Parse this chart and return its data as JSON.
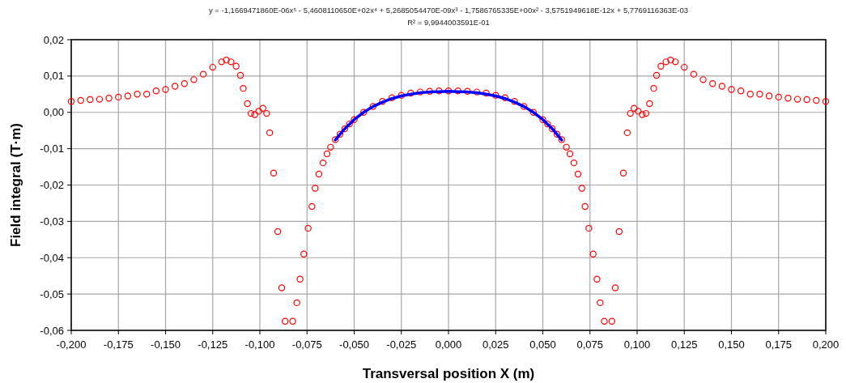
{
  "chart_data": {
    "type": "scatter",
    "title": "y = -1,1669471860E-06x⁵ - 5,4608110650E+02x⁴ + 5,2685054470E-09x³ - 1,7586765335E+00x² - 3,5751949618E-12x + 5,7769116363E-03",
    "subtitle": "R² = 9,9944003591E-01",
    "xlabel": "Transversal position X (m)",
    "ylabel": "Field integral (T·m)",
    "xlim": [
      -0.2,
      0.2
    ],
    "ylim": [
      -0.06,
      0.02
    ],
    "xticks": [
      {
        "value": -0.2,
        "label": "-0,200"
      },
      {
        "value": -0.175,
        "label": "-0,175"
      },
      {
        "value": -0.15,
        "label": "-0,150"
      },
      {
        "value": -0.125,
        "label": "-0,125"
      },
      {
        "value": -0.1,
        "label": "-0,100"
      },
      {
        "value": -0.075,
        "label": "-0,075"
      },
      {
        "value": -0.05,
        "label": "-0,050"
      },
      {
        "value": -0.025,
        "label": "-0,025"
      },
      {
        "value": 0,
        "label": "0,000"
      },
      {
        "value": 0.025,
        "label": "0,025"
      },
      {
        "value": 0.05,
        "label": "0,050"
      },
      {
        "value": 0.075,
        "label": "0,075"
      },
      {
        "value": 0.1,
        "label": "0,100"
      },
      {
        "value": 0.125,
        "label": "0,125"
      },
      {
        "value": 0.15,
        "label": "0,150"
      },
      {
        "value": 0.175,
        "label": "0,175"
      },
      {
        "value": 0.2,
        "label": "0,200"
      }
    ],
    "yticks": [
      {
        "value": -0.06,
        "label": "-0,06"
      },
      {
        "value": -0.05,
        "label": "-0,05"
      },
      {
        "value": -0.04,
        "label": "-0,04"
      },
      {
        "value": -0.03,
        "label": "-0,03"
      },
      {
        "value": -0.02,
        "label": "-0,02"
      },
      {
        "value": -0.01,
        "label": "-0,01"
      },
      {
        "value": 0,
        "label": "0,00"
      },
      {
        "value": 0.01,
        "label": "0,01"
      },
      {
        "value": 0.02,
        "label": "0,02"
      }
    ],
    "grid": true,
    "series": [
      {
        "color": "#ff0000",
        "marker": "circle",
        "x": [
          -0.2,
          -0.195,
          -0.19,
          -0.185,
          -0.18,
          -0.175,
          -0.17,
          -0.165,
          -0.16,
          -0.155,
          -0.15,
          -0.145,
          -0.14,
          -0.135,
          -0.13,
          -0.125,
          -0.1203,
          -0.1178,
          -0.1153,
          -0.1126,
          -0.1103,
          -0.1088,
          -0.1066,
          -0.1047,
          -0.1027,
          -0.1006,
          -0.0984,
          -0.0964,
          -0.0948,
          -0.0927,
          -0.0905,
          -0.0884,
          -0.0866,
          -0.0826,
          -0.0804,
          -0.0787,
          -0.0767,
          -0.0744,
          -0.0724,
          -0.0707,
          -0.0687,
          -0.0665,
          -0.0644,
          -0.0625,
          -0.06,
          -0.0575,
          -0.055,
          -0.0525,
          -0.05,
          -0.045,
          -0.04,
          -0.035,
          -0.03,
          -0.025,
          -0.02,
          -0.015,
          -0.01,
          -0.005,
          0,
          0.005,
          0.01,
          0.015,
          0.02,
          0.025,
          0.03,
          0.035,
          0.04,
          0.045,
          0.05,
          0.0525,
          0.055,
          0.0575,
          0.06,
          0.0625,
          0.0644,
          0.0665,
          0.0687,
          0.0707,
          0.0724,
          0.0744,
          0.0767,
          0.0787,
          0.0804,
          0.0826,
          0.0866,
          0.0884,
          0.0905,
          0.0927,
          0.0948,
          0.0964,
          0.0984,
          0.1006,
          0.1027,
          0.1047,
          0.1066,
          0.1088,
          0.1103,
          0.1126,
          0.1153,
          0.1178,
          0.1203,
          0.125,
          0.13,
          0.135,
          0.14,
          0.145,
          0.15,
          0.155,
          0.16,
          0.165,
          0.17,
          0.175,
          0.18,
          0.185,
          0.19,
          0.195,
          0.2
        ],
        "values": [
          0.003,
          0.0033,
          0.0035,
          0.0036,
          0.0039,
          0.0042,
          0.0045,
          0.005,
          0.005,
          0.0059,
          0.0063,
          0.0072,
          0.0079,
          0.009,
          0.0105,
          0.0124,
          0.0139,
          0.0144,
          0.0139,
          0.0127,
          0.0102,
          0.0066,
          0.0024,
          -0.0003,
          -0.0006,
          0.0003,
          0.0011,
          -0.0003,
          -0.0056,
          -0.0167,
          -0.0328,
          -0.0483,
          -0.0575,
          -0.0575,
          -0.0524,
          -0.0459,
          -0.039,
          -0.0319,
          -0.0259,
          -0.0209,
          -0.017,
          -0.0139,
          -0.0114,
          -0.0096,
          -0.0075,
          -0.006,
          -0.0045,
          -0.0032,
          -0.002,
          0.0,
          0.0016,
          0.003,
          0.004,
          0.0047,
          0.0053,
          0.0056,
          0.0058,
          0.0059,
          0.0059,
          0.0059,
          0.0058,
          0.0056,
          0.0053,
          0.0047,
          0.004,
          0.003,
          0.0016,
          0.0,
          -0.002,
          -0.0032,
          -0.0045,
          -0.006,
          -0.0075,
          -0.0096,
          -0.0114,
          -0.0139,
          -0.017,
          -0.0209,
          -0.0259,
          -0.0319,
          -0.039,
          -0.0459,
          -0.0524,
          -0.0575,
          -0.0575,
          -0.0483,
          -0.0328,
          -0.0167,
          -0.0056,
          -0.0003,
          0.0011,
          0.0003,
          -0.0006,
          -0.0003,
          0.0024,
          0.0066,
          0.0102,
          0.0127,
          0.0139,
          0.0144,
          0.0139,
          0.0124,
          0.0105,
          0.009,
          0.0079,
          0.0072,
          0.0063,
          0.0059,
          0.005,
          0.005,
          0.0045,
          0.0042,
          0.0039,
          0.0036,
          0.0035,
          0.0033,
          0.003
        ]
      },
      {
        "type": "line",
        "color": "#0000ff",
        "marker": "none",
        "line_style": "solid",
        "x": [
          -0.06,
          -0.055,
          -0.05,
          -0.045,
          -0.04,
          -0.035,
          -0.03,
          -0.025,
          -0.02,
          -0.015,
          -0.01,
          -0.005,
          0,
          0.005,
          0.01,
          0.015,
          0.02,
          0.025,
          0.03,
          0.035,
          0.04,
          0.045,
          0.05,
          0.055,
          0.06
        ],
        "values": [
          -0.0076,
          -0.0045,
          -0.002,
          0.0,
          0.0016,
          0.0028,
          0.0038,
          0.0045,
          0.005,
          0.0054,
          0.0056,
          0.0057,
          0.0058,
          0.0057,
          0.0056,
          0.0054,
          0.005,
          0.0045,
          0.0038,
          0.0028,
          0.0016,
          0.0,
          -0.002,
          -0.0045,
          -0.0076
        ]
      }
    ]
  }
}
